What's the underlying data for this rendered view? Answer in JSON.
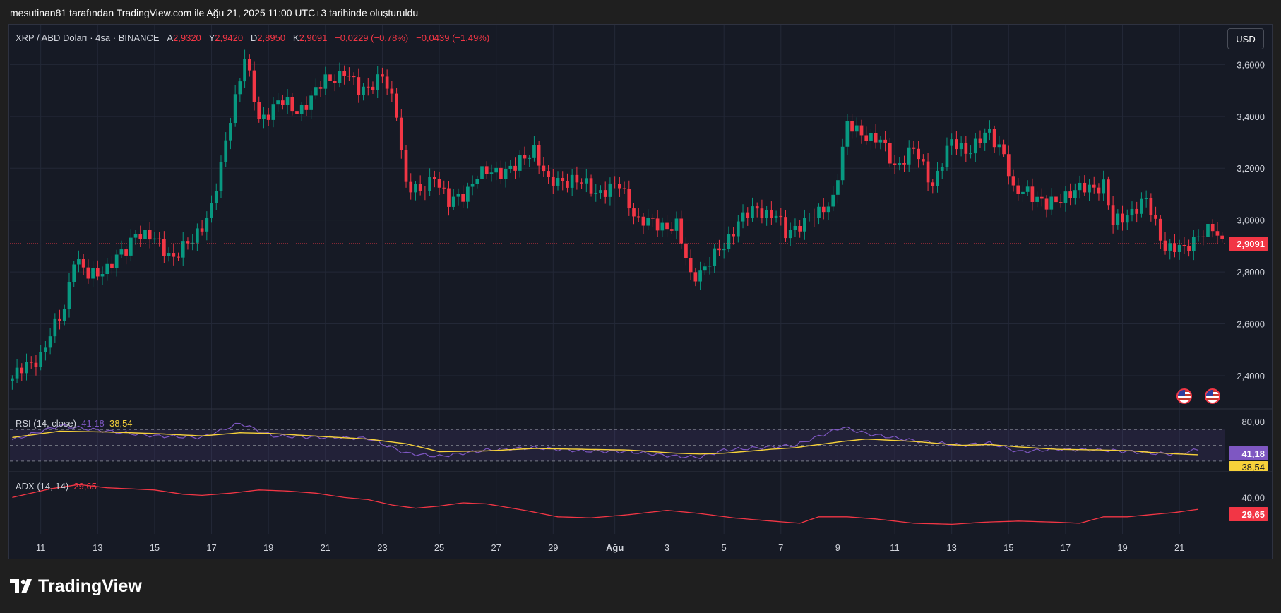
{
  "attribution": "mesutinan81 tarafından TradingView.com ile Ağu 21, 2025 11:00 UTC+3 tarihinde oluşturuldu",
  "currency_button": "USD",
  "brand": "TradingView",
  "legend": {
    "symbol": "XRP / ABD Doları · 4sa · BINANCE",
    "open_label": "A",
    "open": "2,9320",
    "high_label": "Y",
    "high": "2,9420",
    "low_label": "D",
    "low": "2,8950",
    "close_label": "K",
    "close": "2,9091",
    "change": "−0,0229 (−0,78%)",
    "extra_change": "−0,0439 (−1,49%)"
  },
  "rsi_legend": {
    "name": "RSI (14, close)",
    "value": "41,18",
    "ma_value": "38,54"
  },
  "adx_legend": {
    "name": "ADX (14, 14)",
    "value": "29,65"
  },
  "colors": {
    "up": "#089981",
    "down": "#f23645",
    "rsi": "#7e57c2",
    "rsi_ma": "#f7d23a",
    "adx": "#f23645",
    "background": "#161a25",
    "grid": "#232837",
    "axis_text": "#d1d4dc"
  },
  "chart_data": {
    "type": "candlestick",
    "price_axis": {
      "ticks": [
        3.6,
        3.4,
        3.2,
        3.0,
        2.8,
        2.6,
        2.4
      ],
      "tick_labels": [
        "3,6000",
        "3,4000",
        "3,2000",
        "3,0000",
        "2,8000",
        "2,6000",
        "2,4000"
      ],
      "range": [
        2.28,
        3.74
      ]
    },
    "last_price": 2.9091,
    "last_price_label": "2,9091",
    "x_axis": {
      "labels": [
        "11",
        "13",
        "15",
        "17",
        "19",
        "21",
        "23",
        "25",
        "27",
        "29",
        "Ağu",
        "3",
        "5",
        "7",
        "9",
        "11",
        "13",
        "15",
        "17",
        "19",
        "21"
      ],
      "label_bar_index": [
        6,
        18,
        30,
        42,
        54,
        66,
        78,
        90,
        102,
        114,
        127,
        138,
        150,
        162,
        174,
        186,
        198,
        210,
        222,
        234,
        246
      ],
      "bar_count": 256
    },
    "anchors": [
      [
        0,
        2.39
      ],
      [
        6,
        2.48
      ],
      [
        11,
        2.66
      ],
      [
        13,
        2.86
      ],
      [
        16,
        2.78
      ],
      [
        20,
        2.82
      ],
      [
        24,
        2.88
      ],
      [
        26,
        2.96
      ],
      [
        30,
        2.92
      ],
      [
        34,
        2.86
      ],
      [
        38,
        2.92
      ],
      [
        42,
        3.05
      ],
      [
        44,
        3.2
      ],
      [
        46,
        3.4
      ],
      [
        49,
        3.63
      ],
      [
        52,
        3.38
      ],
      [
        56,
        3.46
      ],
      [
        60,
        3.42
      ],
      [
        63,
        3.47
      ],
      [
        66,
        3.54
      ],
      [
        70,
        3.57
      ],
      [
        73,
        3.5
      ],
      [
        78,
        3.55
      ],
      [
        81,
        3.42
      ],
      [
        83,
        3.14
      ],
      [
        86,
        3.1
      ],
      [
        89,
        3.18
      ],
      [
        92,
        3.06
      ],
      [
        95,
        3.1
      ],
      [
        98,
        3.17
      ],
      [
        102,
        3.19
      ],
      [
        106,
        3.2
      ],
      [
        110,
        3.28
      ],
      [
        113,
        3.14
      ],
      [
        118,
        3.16
      ],
      [
        123,
        3.11
      ],
      [
        128,
        3.13
      ],
      [
        132,
        3.0
      ],
      [
        136,
        2.98
      ],
      [
        140,
        2.98
      ],
      [
        143,
        2.78
      ],
      [
        146,
        2.82
      ],
      [
        150,
        2.9
      ],
      [
        153,
        3.0
      ],
      [
        157,
        3.04
      ],
      [
        161,
        3.02
      ],
      [
        163,
        2.94
      ],
      [
        166,
        2.99
      ],
      [
        170,
        3.02
      ],
      [
        173,
        3.09
      ],
      [
        176,
        3.36
      ],
      [
        179,
        3.34
      ],
      [
        183,
        3.3
      ],
      [
        186,
        3.21
      ],
      [
        190,
        3.27
      ],
      [
        194,
        3.14
      ],
      [
        198,
        3.3
      ],
      [
        202,
        3.27
      ],
      [
        206,
        3.34
      ],
      [
        209,
        3.26
      ],
      [
        211,
        3.1
      ],
      [
        214,
        3.12
      ],
      [
        218,
        3.05
      ],
      [
        222,
        3.1
      ],
      [
        226,
        3.12
      ],
      [
        230,
        3.14
      ],
      [
        232,
        2.98
      ],
      [
        236,
        3.04
      ],
      [
        239,
        3.07
      ],
      [
        243,
        2.9
      ],
      [
        247,
        2.88
      ],
      [
        250,
        2.95
      ],
      [
        253,
        2.96
      ],
      [
        255,
        2.91
      ]
    ],
    "rsi": {
      "name": "RSI (14, close)",
      "range": [
        20,
        90
      ],
      "bands": [
        70,
        50,
        30
      ],
      "band_label": "80,00",
      "value_label": "41,18",
      "ma_label": "38,54",
      "anchors": [
        [
          0,
          57
        ],
        [
          10,
          75
        ],
        [
          20,
          68
        ],
        [
          30,
          62
        ],
        [
          40,
          60
        ],
        [
          48,
          78
        ],
        [
          55,
          62
        ],
        [
          66,
          60
        ],
        [
          75,
          59
        ],
        [
          83,
          40
        ],
        [
          90,
          36
        ],
        [
          100,
          44
        ],
        [
          110,
          47
        ],
        [
          120,
          43
        ],
        [
          130,
          42
        ],
        [
          140,
          36
        ],
        [
          145,
          35
        ],
        [
          150,
          44
        ],
        [
          160,
          48
        ],
        [
          165,
          50
        ],
        [
          175,
          73
        ],
        [
          180,
          65
        ],
        [
          190,
          56
        ],
        [
          200,
          50
        ],
        [
          206,
          53
        ],
        [
          212,
          42
        ],
        [
          220,
          45
        ],
        [
          230,
          44
        ],
        [
          236,
          42
        ],
        [
          240,
          40
        ],
        [
          246,
          39
        ],
        [
          250,
          45
        ],
        [
          255,
          41
        ]
      ],
      "ma_anchors": [
        [
          0,
          60
        ],
        [
          10,
          68
        ],
        [
          20,
          67
        ],
        [
          30,
          65
        ],
        [
          40,
          62
        ],
        [
          48,
          66
        ],
        [
          55,
          65
        ],
        [
          66,
          61
        ],
        [
          75,
          58
        ],
        [
          83,
          52
        ],
        [
          90,
          42
        ],
        [
          100,
          43
        ],
        [
          110,
          46
        ],
        [
          120,
          45
        ],
        [
          130,
          44
        ],
        [
          140,
          40
        ],
        [
          145,
          39
        ],
        [
          150,
          40
        ],
        [
          160,
          45
        ],
        [
          165,
          47
        ],
        [
          175,
          55
        ],
        [
          180,
          58
        ],
        [
          190,
          55
        ],
        [
          200,
          50
        ],
        [
          206,
          51
        ],
        [
          212,
          48
        ],
        [
          220,
          45
        ],
        [
          230,
          44
        ],
        [
          236,
          43
        ],
        [
          240,
          41
        ],
        [
          246,
          39
        ],
        [
          250,
          38
        ],
        [
          255,
          38.5
        ]
      ]
    },
    "adx": {
      "name": "ADX (14, 14)",
      "range": [
        10,
        60
      ],
      "band_label": "40,00",
      "value_label": "29,65",
      "anchors": [
        [
          0,
          40
        ],
        [
          8,
          48
        ],
        [
          14,
          52
        ],
        [
          20,
          49
        ],
        [
          30,
          47
        ],
        [
          36,
          43
        ],
        [
          40,
          42
        ],
        [
          46,
          44
        ],
        [
          52,
          47
        ],
        [
          58,
          46
        ],
        [
          64,
          44
        ],
        [
          70,
          40
        ],
        [
          75,
          38
        ],
        [
          80,
          33
        ],
        [
          85,
          30
        ],
        [
          90,
          32
        ],
        [
          95,
          35
        ],
        [
          100,
          34
        ],
        [
          108,
          28
        ],
        [
          115,
          22
        ],
        [
          122,
          21
        ],
        [
          130,
          24
        ],
        [
          138,
          28
        ],
        [
          145,
          25
        ],
        [
          152,
          21
        ],
        [
          160,
          18
        ],
        [
          166,
          16
        ],
        [
          170,
          22
        ],
        [
          176,
          22
        ],
        [
          182,
          20
        ],
        [
          190,
          16
        ],
        [
          198,
          15
        ],
        [
          205,
          17
        ],
        [
          212,
          18
        ],
        [
          220,
          17
        ],
        [
          225,
          16
        ],
        [
          230,
          22
        ],
        [
          235,
          22
        ],
        [
          240,
          24
        ],
        [
          245,
          26
        ],
        [
          250,
          29
        ],
        [
          255,
          29.65
        ]
      ]
    }
  }
}
